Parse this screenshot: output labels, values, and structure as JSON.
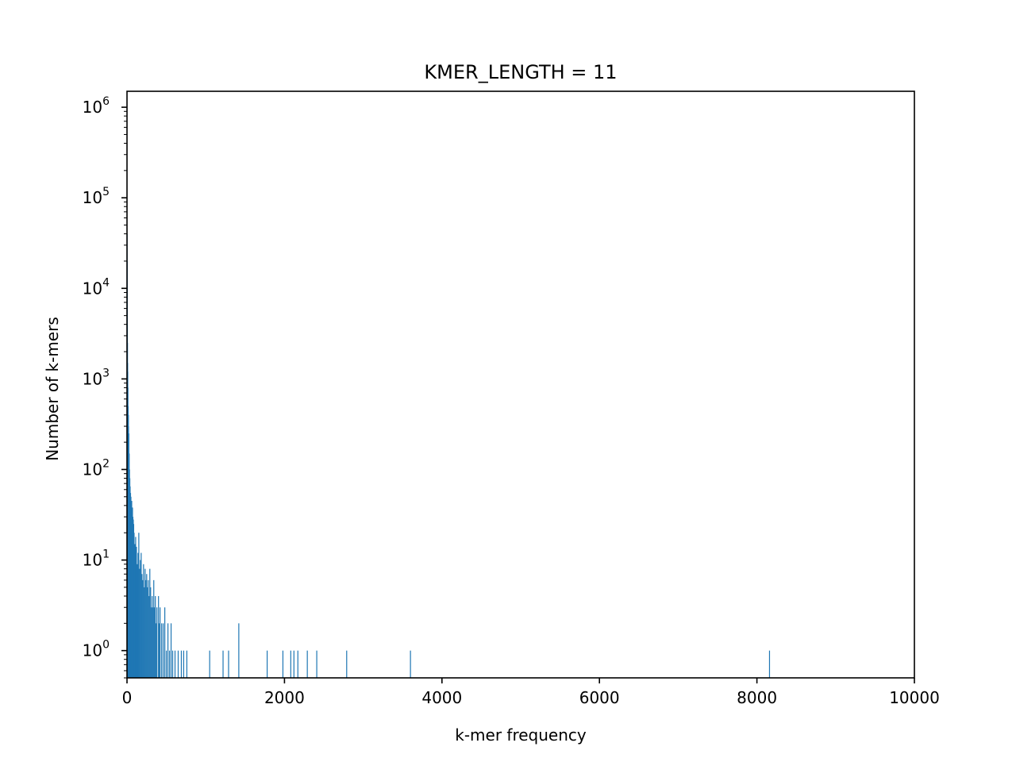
{
  "chart_data": {
    "type": "bar",
    "title": "KMER_LENGTH = 11",
    "xlabel": "k-mer frequency",
    "ylabel": "Number of k-mers",
    "xlim": [
      0,
      10000
    ],
    "ylim": [
      0.5,
      1500000
    ],
    "yscale": "log",
    "grid": false,
    "legend": "none",
    "bar_color": "#1f77b4",
    "x_ticks": [
      {
        "value": 0,
        "label": "0"
      },
      {
        "value": 2000,
        "label": "2000"
      },
      {
        "value": 4000,
        "label": "4000"
      },
      {
        "value": 6000,
        "label": "6000"
      },
      {
        "value": 8000,
        "label": "8000"
      },
      {
        "value": 10000,
        "label": "10000"
      }
    ],
    "y_ticks": [
      {
        "value": 1,
        "base": "10",
        "exp": "0"
      },
      {
        "value": 10,
        "base": "10",
        "exp": "1"
      },
      {
        "value": 100,
        "base": "10",
        "exp": "2"
      },
      {
        "value": 1000,
        "base": "10",
        "exp": "3"
      },
      {
        "value": 10000,
        "base": "10",
        "exp": "4"
      },
      {
        "value": 100000,
        "base": "10",
        "exp": "5"
      },
      {
        "value": 1000000,
        "base": "10",
        "exp": "6"
      }
    ],
    "series": [
      {
        "x": [
          1,
          2,
          3,
          4,
          5,
          6,
          8,
          10,
          12,
          15,
          18,
          20,
          24,
          28,
          32,
          36,
          40,
          45,
          50,
          55,
          60,
          65,
          70,
          75,
          80,
          85,
          90,
          100,
          105,
          110,
          115,
          120,
          130,
          140,
          150,
          160,
          170,
          180,
          190,
          200,
          210,
          220,
          230,
          240,
          250,
          260,
          270,
          280,
          290,
          300,
          310,
          320,
          330,
          340,
          350,
          360,
          370,
          380,
          400,
          410,
          420,
          440,
          460,
          480,
          500,
          520,
          540,
          560,
          580,
          610,
          650,
          690,
          720,
          760,
          1050,
          1220,
          1290,
          1420,
          1780,
          1980,
          2080,
          2120,
          2170,
          2290,
          2410,
          2790,
          3600,
          8160
        ],
        "values": [
          40000,
          20000,
          10000,
          6000,
          4000,
          2500,
          1500,
          1200,
          800,
          500,
          400,
          300,
          250,
          150,
          100,
          80,
          65,
          55,
          50,
          40,
          45,
          35,
          38,
          30,
          28,
          25,
          20,
          15,
          12,
          18,
          10,
          14,
          9,
          12,
          20,
          8,
          10,
          12,
          7,
          6,
          9,
          5,
          8,
          6,
          7,
          5,
          6,
          4,
          8,
          5,
          3,
          4,
          3,
          6,
          3,
          4,
          2,
          3,
          4,
          2,
          3,
          2,
          2,
          3,
          1,
          2,
          1,
          2,
          1,
          1,
          1,
          1,
          1,
          1,
          1,
          1,
          1,
          2,
          1,
          1,
          1,
          1,
          1,
          1,
          1,
          1,
          1,
          1
        ]
      }
    ]
  }
}
